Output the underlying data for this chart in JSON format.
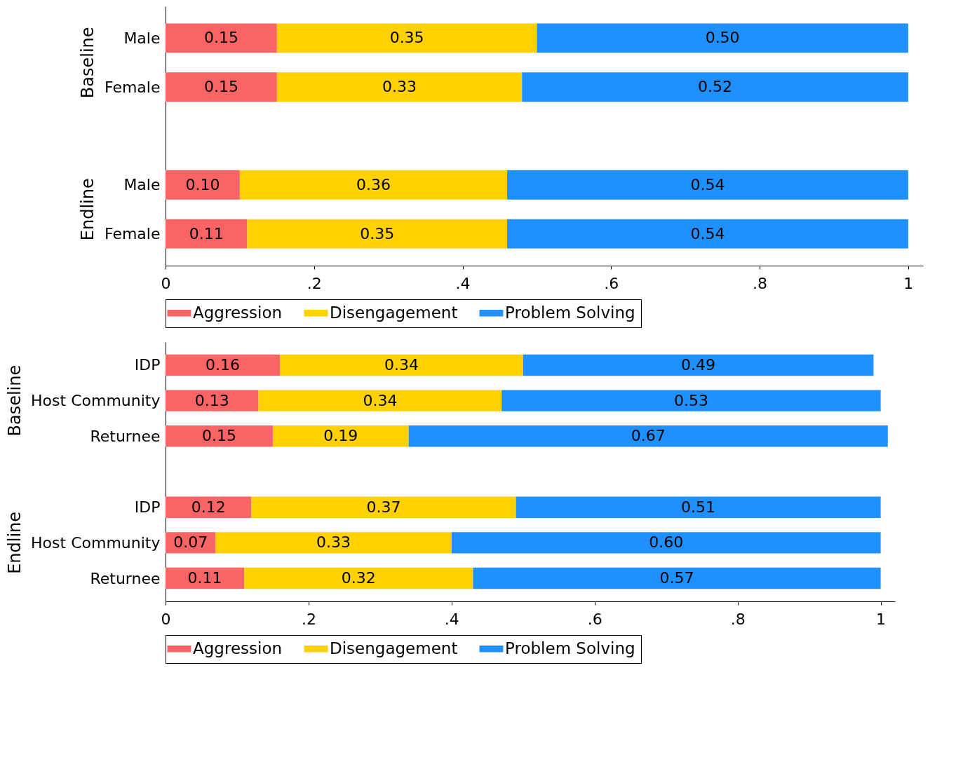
{
  "chart_data": [
    {
      "type": "bar",
      "orientation": "horizontal",
      "stacked": true,
      "categories": [
        "Male",
        "Female",
        null,
        "Male",
        "Female"
      ],
      "annotations": [
        "Baseline",
        "Endline"
      ],
      "xlim": [
        0,
        1.02
      ],
      "xticks": [
        {
          "value": 0,
          "label": "0"
        },
        {
          "value": 0.2,
          "label": ".2"
        },
        {
          "value": 0.4,
          "label": ".4"
        },
        {
          "value": 0.6,
          "label": ".6"
        },
        {
          "value": 0.8,
          "label": ".8"
        },
        {
          "value": 1,
          "label": "1"
        }
      ],
      "legend": "bottom",
      "grid": false,
      "series": [
        {
          "name": "Aggression",
          "color": "#fa6464",
          "values": [
            0.15,
            0.15,
            null,
            0.1,
            0.11
          ],
          "value_labels": [
            "0.15",
            "0.15",
            null,
            "0.10",
            "0.11"
          ]
        },
        {
          "name": "Disengagement",
          "color": "#ffd100",
          "values": [
            0.35,
            0.33,
            null,
            0.36,
            0.35
          ],
          "value_labels": [
            "0.35",
            "0.33",
            null,
            "0.36",
            "0.35"
          ]
        },
        {
          "name": "Problem Solving",
          "color": "#1e90ff",
          "values": [
            0.5,
            0.52,
            null,
            0.54,
            0.54
          ],
          "value_labels": [
            "0.50",
            "0.52",
            null,
            "0.54",
            "0.54"
          ]
        }
      ]
    },
    {
      "type": "bar",
      "orientation": "horizontal",
      "stacked": true,
      "categories": [
        "IDP",
        "Host Community",
        "Returnee",
        null,
        "IDP",
        "Host Community",
        "Returnee"
      ],
      "annotations": [
        "Baseline",
        "Endline"
      ],
      "xlim": [
        0,
        1.02
      ],
      "xticks": [
        {
          "value": 0,
          "label": "0"
        },
        {
          "value": 0.2,
          "label": ".2"
        },
        {
          "value": 0.4,
          "label": ".4"
        },
        {
          "value": 0.6,
          "label": ".6"
        },
        {
          "value": 0.8,
          "label": ".8"
        },
        {
          "value": 1,
          "label": "1"
        }
      ],
      "legend": "bottom",
      "grid": false,
      "series": [
        {
          "name": "Aggression",
          "color": "#fa6464",
          "values": [
            0.16,
            0.13,
            0.15,
            null,
            0.12,
            0.07,
            0.11
          ],
          "value_labels": [
            "0.16",
            "0.13",
            "0.15",
            null,
            "0.12",
            "0.07",
            "0.11"
          ]
        },
        {
          "name": "Disengagement",
          "color": "#ffd100",
          "values": [
            0.34,
            0.34,
            0.19,
            null,
            0.37,
            0.33,
            0.32
          ],
          "value_labels": [
            "0.34",
            "0.34",
            "0.19",
            null,
            "0.37",
            "0.33",
            "0.32"
          ]
        },
        {
          "name": "Problem Solving",
          "color": "#1e90ff",
          "values": [
            0.49,
            0.53,
            0.67,
            null,
            0.51,
            0.6,
            0.57
          ],
          "value_labels": [
            "0.49",
            "0.53",
            "0.67",
            null,
            "0.51",
            "0.60",
            "0.57"
          ]
        }
      ]
    }
  ]
}
